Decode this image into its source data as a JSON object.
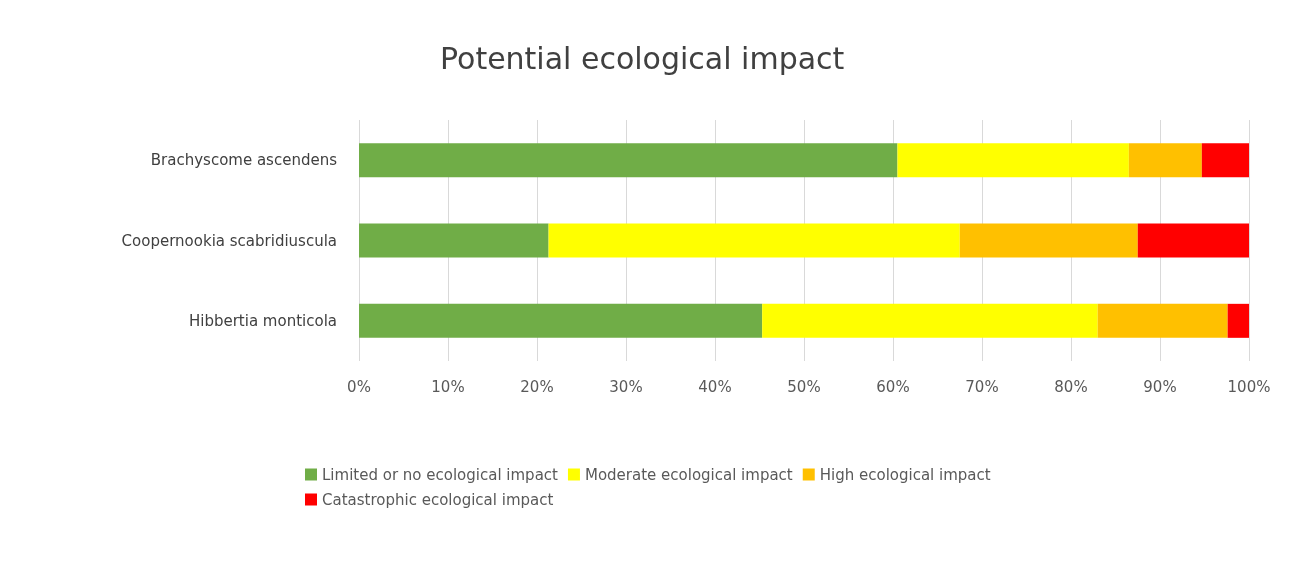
{
  "chart_data": {
    "type": "bar",
    "orientation": "horizontal",
    "stacked": true,
    "title": "Potential ecological impact",
    "categories": [
      "Brachyscome ascendens",
      "Coopernookia scabridiuscula",
      "Hibbertia monticola"
    ],
    "series": [
      {
        "name": "Limited or no ecological impact",
        "color": "#70ad47",
        "values": [
          60.5,
          21.3,
          45.3
        ]
      },
      {
        "name": "Moderate ecological impact",
        "color": "#ffff00",
        "values": [
          26,
          46.2,
          37.7
        ]
      },
      {
        "name": "High ecological impact",
        "color": "#ffc000",
        "values": [
          8.2,
          20,
          14.6
        ]
      },
      {
        "name": "Catastrophic ecological impact",
        "color": "#ff0000",
        "values": [
          5.3,
          12.5,
          2.4
        ]
      }
    ],
    "xlim": [
      0,
      100
    ],
    "xticks": [
      {
        "value": 0,
        "label": "0%"
      },
      {
        "value": 10,
        "label": "10%"
      },
      {
        "value": 20,
        "label": "20%"
      },
      {
        "value": 30,
        "label": "30%"
      },
      {
        "value": 40,
        "label": "40%"
      },
      {
        "value": 50,
        "label": "50%"
      },
      {
        "value": 60,
        "label": "60%"
      },
      {
        "value": 70,
        "label": "70%"
      },
      {
        "value": 80,
        "label": "80%"
      },
      {
        "value": 90,
        "label": "90%"
      },
      {
        "value": 100,
        "label": "100%"
      }
    ],
    "grid": "x",
    "legend": "bottom"
  }
}
